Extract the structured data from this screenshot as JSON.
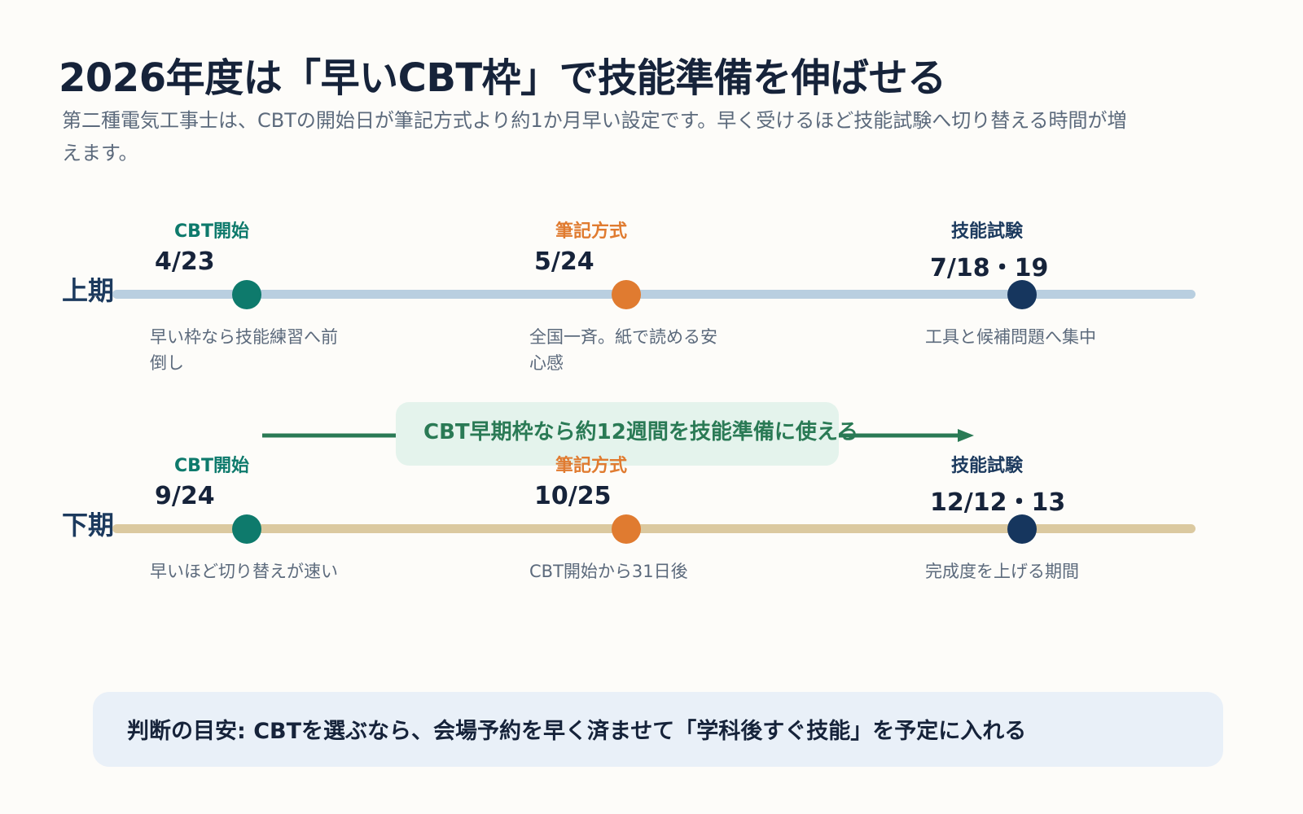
{
  "title": "2026年度は「早いCBT枠」で技能準備を伸ばせる",
  "subtitle": "第二種電気工事士は、CBTの開始日が筆記方式より約1か月早い設定です。早く受けるほど技能試験へ切り替える時間が増えます。",
  "periods": [
    {
      "label": "上期",
      "track_color": "#b9cfe0",
      "events": [
        {
          "label": "CBT開始",
          "date": "4/23",
          "note": "早い枠なら技能練習へ前倒し"
        },
        {
          "label": "筆記方式",
          "date": "5/24",
          "note": "全国一斉。紙で読める安心感"
        },
        {
          "label": "技能試験",
          "date": "7/18・19",
          "note": "工具と候補問題へ集中"
        }
      ]
    },
    {
      "label": "下期",
      "track_color": "#dbc9a0",
      "events": [
        {
          "label": "CBT開始",
          "date": "9/24",
          "note": "早いほど切り替えが速い"
        },
        {
          "label": "筆記方式",
          "date": "10/25",
          "note": "CBT開始から31日後"
        },
        {
          "label": "技能試験",
          "date": "12/12・13",
          "note": "完成度を上げる期間"
        }
      ]
    }
  ],
  "gap_callout": "CBT早期枠なら約12週間を技能準備に使える",
  "footer": "判断の目安: CBTを選ぶなら、会場予約を早く済ませて「学科後すぐ技能」を予定に入れる",
  "colors": {
    "cbt": "#0e7a6c",
    "written": "#e07b30",
    "skill": "#16365e",
    "callout": "#2a7a55"
  }
}
